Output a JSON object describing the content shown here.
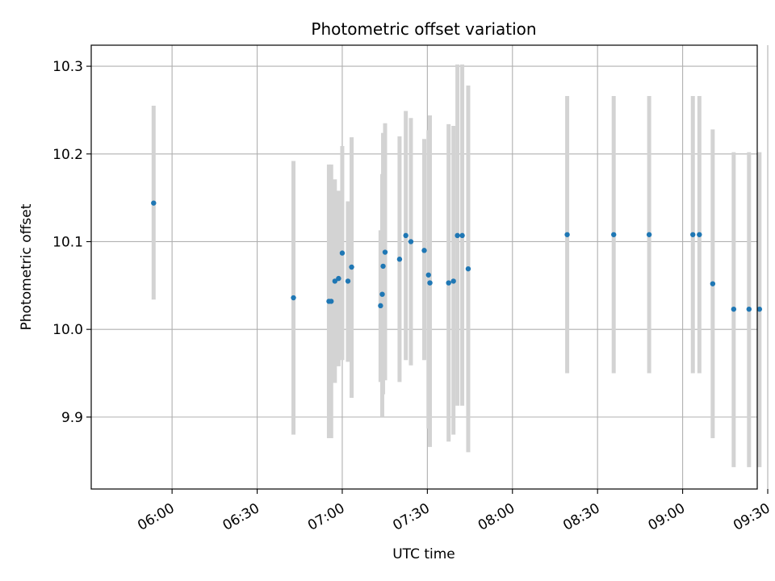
{
  "chart_data": {
    "type": "scatter",
    "title": "Photometric offset variation",
    "xlabel": "UTC time",
    "ylabel": "Photometric offset",
    "xlim_minutes": [
      331.5,
      566.3
    ],
    "ylim": [
      9.818,
      10.324
    ],
    "x_ticks": [
      {
        "minutes": 360,
        "label": "06:00"
      },
      {
        "minutes": 390,
        "label": "06:30"
      },
      {
        "minutes": 420,
        "label": "07:00"
      },
      {
        "minutes": 450,
        "label": "07:30"
      },
      {
        "minutes": 480,
        "label": "08:00"
      },
      {
        "minutes": 510,
        "label": "08:30"
      },
      {
        "minutes": 540,
        "label": "09:00"
      },
      {
        "minutes": 570,
        "label": "09:30"
      }
    ],
    "y_ticks": [
      {
        "value": 9.9,
        "label": "9.9"
      },
      {
        "value": 10.0,
        "label": "10.0"
      },
      {
        "value": 10.1,
        "label": "10.1"
      },
      {
        "value": 10.2,
        "label": "10.2"
      },
      {
        "value": 10.3,
        "label": "10.3"
      }
    ],
    "grid": true,
    "series": [
      {
        "name": "offset",
        "marker_color": "#1f77b4",
        "errorbar_color": "#d3d3d3",
        "points": [
          {
            "t": 353.5,
            "y": 10.144,
            "lo": 10.034,
            "hi": 10.255
          },
          {
            "t": 402.8,
            "y": 10.036,
            "lo": 9.88,
            "hi": 10.192
          },
          {
            "t": 415.3,
            "y": 10.032,
            "lo": 9.876,
            "hi": 10.188
          },
          {
            "t": 416.1,
            "y": 10.032,
            "lo": 9.876,
            "hi": 10.188
          },
          {
            "t": 417.4,
            "y": 10.055,
            "lo": 9.939,
            "hi": 10.171
          },
          {
            "t": 418.7,
            "y": 10.058,
            "lo": 9.958,
            "hi": 10.158
          },
          {
            "t": 420.0,
            "y": 10.087,
            "lo": 9.965,
            "hi": 10.209
          },
          {
            "t": 422.0,
            "y": 10.055,
            "lo": 9.963,
            "hi": 10.146
          },
          {
            "t": 423.3,
            "y": 10.071,
            "lo": 9.922,
            "hi": 10.219
          },
          {
            "t": 433.5,
            "y": 10.027,
            "lo": 9.94,
            "hi": 10.113
          },
          {
            "t": 434.1,
            "y": 10.04,
            "lo": 9.9,
            "hi": 10.177
          },
          {
            "t": 434.4,
            "y": 10.072,
            "lo": 9.926,
            "hi": 10.224
          },
          {
            "t": 435.1,
            "y": 10.088,
            "lo": 9.942,
            "hi": 10.235
          },
          {
            "t": 440.2,
            "y": 10.08,
            "lo": 9.94,
            "hi": 10.22
          },
          {
            "t": 442.4,
            "y": 10.107,
            "lo": 9.965,
            "hi": 10.249
          },
          {
            "t": 444.2,
            "y": 10.1,
            "lo": 9.959,
            "hi": 10.241
          },
          {
            "t": 448.9,
            "y": 10.09,
            "lo": 9.965,
            "hi": 10.217
          },
          {
            "t": 450.4,
            "y": 10.062,
            "lo": 9.887,
            "hi": 10.227
          },
          {
            "t": 450.9,
            "y": 10.053,
            "lo": 9.866,
            "hi": 10.244
          },
          {
            "t": 457.5,
            "y": 10.053,
            "lo": 9.872,
            "hi": 10.234
          },
          {
            "t": 459.2,
            "y": 10.055,
            "lo": 9.88,
            "hi": 10.232
          },
          {
            "t": 460.6,
            "y": 10.107,
            "lo": 9.913,
            "hi": 10.302
          },
          {
            "t": 462.3,
            "y": 10.107,
            "lo": 9.913,
            "hi": 10.302
          },
          {
            "t": 464.4,
            "y": 10.069,
            "lo": 9.86,
            "hi": 10.278
          },
          {
            "t": 499.3,
            "y": 10.108,
            "lo": 9.95,
            "hi": 10.266
          },
          {
            "t": 515.7,
            "y": 10.108,
            "lo": 9.95,
            "hi": 10.266
          },
          {
            "t": 528.2,
            "y": 10.108,
            "lo": 9.95,
            "hi": 10.266
          },
          {
            "t": 543.6,
            "y": 10.108,
            "lo": 9.95,
            "hi": 10.266
          },
          {
            "t": 545.9,
            "y": 10.108,
            "lo": 9.95,
            "hi": 10.266
          },
          {
            "t": 550.6,
            "y": 10.052,
            "lo": 9.876,
            "hi": 10.228
          },
          {
            "t": 558.0,
            "y": 10.023,
            "lo": 9.843,
            "hi": 10.202
          },
          {
            "t": 563.4,
            "y": 10.023,
            "lo": 9.843,
            "hi": 10.202
          },
          {
            "t": 567.1,
            "y": 10.023,
            "lo": 9.843,
            "hi": 10.202
          }
        ]
      }
    ]
  }
}
